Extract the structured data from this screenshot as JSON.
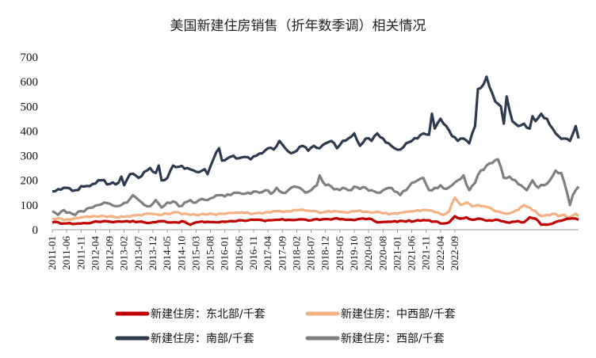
{
  "chart_data": {
    "type": "line",
    "title": "美国新建住房销售（折年数季调）相关情况",
    "xlabel": "",
    "ylabel": "",
    "ylim": [
      0,
      700
    ],
    "yticks": [
      0,
      100,
      200,
      300,
      400,
      500,
      600,
      700
    ],
    "x_tick_labels": [
      "2011-01",
      "2011-06",
      "2011-11",
      "2012-04",
      "2012-09",
      "2013-02",
      "2013-07",
      "2013-12",
      "2014-05",
      "2014-10",
      "2015-03",
      "2015-08",
      "2016-01",
      "2016-06",
      "2016-11",
      "2017-04",
      "2017-09",
      "2018-02",
      "2018-07",
      "2018-12",
      "2019-05",
      "2019-10",
      "2020-03",
      "2020-08",
      "2021-01",
      "2021-06",
      "2021-11",
      "2022-04",
      "2022-09"
    ],
    "legend_position": "bottom",
    "series": [
      {
        "name": "新建住房：东北部/千套",
        "color": "#c00000",
        "anchors": [
          [
            0,
            30
          ],
          [
            5,
            25
          ],
          [
            10,
            25
          ],
          [
            14,
            30
          ],
          [
            18,
            35
          ],
          [
            22,
            32
          ],
          [
            26,
            35
          ],
          [
            30,
            32
          ],
          [
            34,
            28
          ],
          [
            38,
            35
          ],
          [
            42,
            30
          ],
          [
            46,
            32
          ],
          [
            48,
            20
          ],
          [
            50,
            30
          ],
          [
            54,
            32
          ],
          [
            58,
            30
          ],
          [
            62,
            35
          ],
          [
            66,
            38
          ],
          [
            70,
            40
          ],
          [
            74,
            35
          ],
          [
            78,
            40
          ],
          [
            82,
            40
          ],
          [
            86,
            42
          ],
          [
            90,
            38
          ],
          [
            94,
            42
          ],
          [
            98,
            45
          ],
          [
            102,
            40
          ],
          [
            106,
            42
          ],
          [
            110,
            45
          ],
          [
            112,
            35
          ],
          [
            114,
            30
          ],
          [
            118,
            32
          ],
          [
            122,
            35
          ],
          [
            126,
            35
          ],
          [
            130,
            38
          ],
          [
            134,
            32
          ],
          [
            136,
            25
          ],
          [
            138,
            30
          ],
          [
            140,
            55
          ],
          [
            142,
            45
          ],
          [
            144,
            50
          ],
          [
            146,
            40
          ],
          [
            148,
            45
          ],
          [
            150,
            40
          ],
          [
            152,
            38
          ],
          [
            154,
            40
          ],
          [
            156,
            35
          ],
          [
            158,
            30
          ],
          [
            160,
            32
          ],
          [
            162,
            35
          ],
          [
            164,
            30
          ],
          [
            166,
            50
          ],
          [
            168,
            45
          ],
          [
            170,
            20
          ],
          [
            172,
            20
          ],
          [
            174,
            25
          ],
          [
            176,
            35
          ],
          [
            178,
            40
          ],
          [
            180,
            45
          ],
          [
            182,
            45
          ],
          [
            183,
            40
          ]
        ]
      },
      {
        "name": "新建住房：中西部/千套",
        "color": "#f4b183",
        "anchors": [
          [
            0,
            45
          ],
          [
            5,
            42
          ],
          [
            10,
            50
          ],
          [
            14,
            55
          ],
          [
            18,
            55
          ],
          [
            22,
            50
          ],
          [
            26,
            55
          ],
          [
            30,
            60
          ],
          [
            34,
            65
          ],
          [
            38,
            60
          ],
          [
            42,
            70
          ],
          [
            46,
            65
          ],
          [
            50,
            60
          ],
          [
            54,
            62
          ],
          [
            58,
            65
          ],
          [
            62,
            68
          ],
          [
            66,
            70
          ],
          [
            70,
            65
          ],
          [
            74,
            70
          ],
          [
            78,
            75
          ],
          [
            82,
            75
          ],
          [
            86,
            80
          ],
          [
            90,
            75
          ],
          [
            94,
            70
          ],
          [
            98,
            75
          ],
          [
            102,
            70
          ],
          [
            106,
            75
          ],
          [
            110,
            72
          ],
          [
            114,
            70
          ],
          [
            118,
            65
          ],
          [
            122,
            70
          ],
          [
            126,
            75
          ],
          [
            130,
            80
          ],
          [
            134,
            70
          ],
          [
            136,
            60
          ],
          [
            138,
            75
          ],
          [
            140,
            130
          ],
          [
            142,
            100
          ],
          [
            144,
            110
          ],
          [
            146,
            95
          ],
          [
            148,
            100
          ],
          [
            150,
            95
          ],
          [
            152,
            90
          ],
          [
            154,
            75
          ],
          [
            156,
            70
          ],
          [
            158,
            65
          ],
          [
            160,
            70
          ],
          [
            162,
            80
          ],
          [
            164,
            100
          ],
          [
            166,
            90
          ],
          [
            168,
            75
          ],
          [
            170,
            55
          ],
          [
            172,
            60
          ],
          [
            174,
            65
          ],
          [
            176,
            55
          ],
          [
            178,
            60
          ],
          [
            180,
            50
          ],
          [
            182,
            65
          ],
          [
            183,
            55
          ]
        ]
      },
      {
        "name": "新建住房：南部/千套",
        "color": "#2e3a4e",
        "anchors": [
          [
            0,
            155
          ],
          [
            5,
            170
          ],
          [
            8,
            160
          ],
          [
            11,
            175
          ],
          [
            14,
            185
          ],
          [
            17,
            200
          ],
          [
            20,
            185
          ],
          [
            23,
            190
          ],
          [
            24,
            215
          ],
          [
            25,
            180
          ],
          [
            27,
            225
          ],
          [
            29,
            220
          ],
          [
            30,
            210
          ],
          [
            32,
            235
          ],
          [
            34,
            250
          ],
          [
            36,
            230
          ],
          [
            37,
            260
          ],
          [
            38,
            200
          ],
          [
            40,
            210
          ],
          [
            42,
            260
          ],
          [
            44,
            255
          ],
          [
            47,
            250
          ],
          [
            50,
            235
          ],
          [
            53,
            245
          ],
          [
            54,
            225
          ],
          [
            56,
            285
          ],
          [
            58,
            330
          ],
          [
            59,
            280
          ],
          [
            61,
            290
          ],
          [
            63,
            300
          ],
          [
            65,
            290
          ],
          [
            67,
            295
          ],
          [
            69,
            285
          ],
          [
            71,
            300
          ],
          [
            73,
            310
          ],
          [
            75,
            330
          ],
          [
            77,
            325
          ],
          [
            79,
            360
          ],
          [
            81,
            330
          ],
          [
            83,
            310
          ],
          [
            85,
            320
          ],
          [
            87,
            340
          ],
          [
            89,
            320
          ],
          [
            91,
            340
          ],
          [
            93,
            330
          ],
          [
            95,
            350
          ],
          [
            97,
            360
          ],
          [
            99,
            330
          ],
          [
            101,
            360
          ],
          [
            103,
            370
          ],
          [
            105,
            390
          ],
          [
            107,
            340
          ],
          [
            109,
            370
          ],
          [
            111,
            360
          ],
          [
            113,
            390
          ],
          [
            115,
            370
          ],
          [
            117,
            350
          ],
          [
            119,
            330
          ],
          [
            121,
            325
          ],
          [
            123,
            350
          ],
          [
            125,
            360
          ],
          [
            127,
            370
          ],
          [
            129,
            390
          ],
          [
            131,
            385
          ],
          [
            132,
            470
          ],
          [
            133,
            410
          ],
          [
            135,
            450
          ],
          [
            137,
            420
          ],
          [
            139,
            380
          ],
          [
            141,
            360
          ],
          [
            143,
            370
          ],
          [
            145,
            350
          ],
          [
            147,
            420
          ],
          [
            148,
            570
          ],
          [
            150,
            590
          ],
          [
            151,
            620
          ],
          [
            152,
            580
          ],
          [
            154,
            520
          ],
          [
            155,
            510
          ],
          [
            156,
            500
          ],
          [
            157,
            430
          ],
          [
            158,
            540
          ],
          [
            160,
            440
          ],
          [
            162,
            420
          ],
          [
            164,
            430
          ],
          [
            166,
            410
          ],
          [
            167,
            460
          ],
          [
            168,
            440
          ],
          [
            170,
            470
          ],
          [
            172,
            450
          ],
          [
            174,
            410
          ],
          [
            176,
            380
          ],
          [
            178,
            370
          ],
          [
            180,
            360
          ],
          [
            182,
            420
          ],
          [
            183,
            370
          ]
        ]
      },
      {
        "name": "新建住房：西部/千套",
        "color": "#808080",
        "anchors": [
          [
            0,
            75
          ],
          [
            2,
            60
          ],
          [
            4,
            80
          ],
          [
            6,
            70
          ],
          [
            8,
            60
          ],
          [
            10,
            75
          ],
          [
            12,
            85
          ],
          [
            14,
            90
          ],
          [
            16,
            100
          ],
          [
            18,
            110
          ],
          [
            20,
            105
          ],
          [
            22,
            95
          ],
          [
            24,
            100
          ],
          [
            26,
            110
          ],
          [
            28,
            140
          ],
          [
            30,
            120
          ],
          [
            32,
            100
          ],
          [
            34,
            95
          ],
          [
            36,
            120
          ],
          [
            38,
            90
          ],
          [
            40,
            110
          ],
          [
            42,
            115
          ],
          [
            44,
            95
          ],
          [
            46,
            110
          ],
          [
            48,
            120
          ],
          [
            50,
            110
          ],
          [
            52,
            125
          ],
          [
            54,
            120
          ],
          [
            56,
            130
          ],
          [
            58,
            140
          ],
          [
            60,
            135
          ],
          [
            62,
            140
          ],
          [
            64,
            150
          ],
          [
            66,
            145
          ],
          [
            68,
            150
          ],
          [
            70,
            155
          ],
          [
            72,
            150
          ],
          [
            74,
            160
          ],
          [
            76,
            145
          ],
          [
            78,
            170
          ],
          [
            80,
            150
          ],
          [
            82,
            160
          ],
          [
            84,
            175
          ],
          [
            86,
            170
          ],
          [
            88,
            150
          ],
          [
            90,
            160
          ],
          [
            92,
            180
          ],
          [
            93,
            220
          ],
          [
            95,
            180
          ],
          [
            97,
            175
          ],
          [
            99,
            165
          ],
          [
            101,
            170
          ],
          [
            103,
            160
          ],
          [
            105,
            175
          ],
          [
            107,
            165
          ],
          [
            109,
            170
          ],
          [
            111,
            160
          ],
          [
            113,
            150
          ],
          [
            115,
            160
          ],
          [
            117,
            170
          ],
          [
            119,
            155
          ],
          [
            121,
            140
          ],
          [
            123,
            160
          ],
          [
            125,
            190
          ],
          [
            127,
            200
          ],
          [
            129,
            210
          ],
          [
            131,
            160
          ],
          [
            133,
            170
          ],
          [
            135,
            180
          ],
          [
            137,
            165
          ],
          [
            139,
            180
          ],
          [
            141,
            200
          ],
          [
            143,
            220
          ],
          [
            145,
            160
          ],
          [
            147,
            190
          ],
          [
            149,
            240
          ],
          [
            151,
            260
          ],
          [
            153,
            270
          ],
          [
            155,
            285
          ],
          [
            157,
            210
          ],
          [
            159,
            215
          ],
          [
            161,
            200
          ],
          [
            163,
            180
          ],
          [
            165,
            160
          ],
          [
            167,
            200
          ],
          [
            169,
            170
          ],
          [
            171,
            180
          ],
          [
            173,
            200
          ],
          [
            175,
            240
          ],
          [
            177,
            230
          ],
          [
            179,
            150
          ],
          [
            180,
            100
          ],
          [
            181,
            140
          ],
          [
            182,
            160
          ],
          [
            183,
            175
          ]
        ]
      }
    ]
  }
}
